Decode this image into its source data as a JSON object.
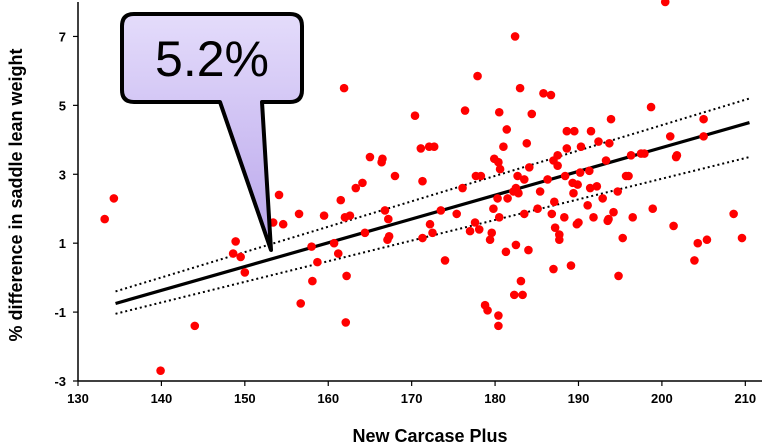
{
  "chart_data": {
    "type": "scatter",
    "title": "",
    "xlabel": "New Carcase Plus",
    "ylabel": "% difference in saddle lean weight",
    "xlim": [
      130,
      212
    ],
    "ylim": [
      -3,
      8
    ],
    "xticks": [
      130,
      140,
      150,
      160,
      170,
      180,
      190,
      200,
      210
    ],
    "yticks": [
      -3,
      -1,
      1,
      3,
      5,
      7
    ],
    "xtick_labels": [
      "130",
      "140",
      "150",
      "160",
      "170",
      "180",
      "190",
      "200",
      "210"
    ],
    "ytick_labels": [
      "-3",
      "-1",
      "1",
      "3",
      "5",
      "7"
    ],
    "grid": false,
    "point_color": "#ff0000",
    "line_color": "#000000",
    "points": [
      [
        133.2,
        1.7
      ],
      [
        134.3,
        2.3
      ],
      [
        139.9,
        -2.7
      ],
      [
        144.0,
        -1.4
      ],
      [
        148.6,
        0.7
      ],
      [
        148.9,
        1.05
      ],
      [
        149.5,
        0.6
      ],
      [
        150.0,
        0.15
      ],
      [
        153.4,
        1.6
      ],
      [
        154.1,
        2.4
      ],
      [
        154.6,
        1.55
      ],
      [
        156.5,
        1.85
      ],
      [
        156.7,
        -0.75
      ],
      [
        158.0,
        0.9
      ],
      [
        158.1,
        -0.1
      ],
      [
        158.7,
        0.45
      ],
      [
        159.5,
        1.8
      ],
      [
        160.7,
        1.0
      ],
      [
        161.2,
        0.7
      ],
      [
        161.5,
        2.25
      ],
      [
        161.9,
        5.5
      ],
      [
        162.0,
        1.75
      ],
      [
        162.1,
        -1.3
      ],
      [
        162.2,
        0.05
      ],
      [
        162.6,
        1.8
      ],
      [
        163.3,
        2.6
      ],
      [
        164.1,
        2.75
      ],
      [
        164.4,
        1.3
      ],
      [
        165.0,
        3.5
      ],
      [
        166.4,
        3.35
      ],
      [
        166.5,
        3.45
      ],
      [
        166.8,
        1.95
      ],
      [
        167.1,
        1.1
      ],
      [
        167.2,
        1.7
      ],
      [
        167.3,
        1.2
      ],
      [
        168.0,
        2.95
      ],
      [
        170.4,
        4.7
      ],
      [
        171.1,
        3.75
      ],
      [
        171.3,
        2.8
      ],
      [
        171.3,
        1.15
      ],
      [
        172.1,
        3.8
      ],
      [
        172.2,
        1.55
      ],
      [
        172.5,
        1.3
      ],
      [
        172.7,
        3.8
      ],
      [
        173.5,
        1.95
      ],
      [
        174.0,
        0.5
      ],
      [
        175.4,
        1.85
      ],
      [
        176.1,
        2.6
      ],
      [
        176.4,
        4.85
      ],
      [
        177.0,
        1.35
      ],
      [
        177.6,
        1.6
      ],
      [
        177.7,
        2.95
      ],
      [
        177.9,
        5.85
      ],
      [
        178.1,
        1.4
      ],
      [
        178.3,
        2.95
      ],
      [
        178.8,
        -0.8
      ],
      [
        179.1,
        -0.95
      ],
      [
        179.4,
        1.1
      ],
      [
        179.6,
        1.3
      ],
      [
        179.8,
        2.0
      ],
      [
        179.9,
        3.45
      ],
      [
        180.3,
        2.3
      ],
      [
        180.4,
        3.35
      ],
      [
        180.4,
        -1.4
      ],
      [
        180.4,
        -1.1
      ],
      [
        180.5,
        4.8
      ],
      [
        180.5,
        1.75
      ],
      [
        180.6,
        3.15
      ],
      [
        181.0,
        3.8
      ],
      [
        181.3,
        0.75
      ],
      [
        181.4,
        4.3
      ],
      [
        181.5,
        2.3
      ],
      [
        182.2,
        2.5
      ],
      [
        182.3,
        -0.5
      ],
      [
        182.4,
        7.0
      ],
      [
        182.5,
        0.95
      ],
      [
        182.5,
        2.6
      ],
      [
        182.7,
        2.95
      ],
      [
        182.8,
        2.45
      ],
      [
        183.0,
        5.5
      ],
      [
        183.1,
        -0.1
      ],
      [
        183.3,
        -0.5
      ],
      [
        183.5,
        2.85
      ],
      [
        183.5,
        1.85
      ],
      [
        183.8,
        3.9
      ],
      [
        184.0,
        0.8
      ],
      [
        184.1,
        3.2
      ],
      [
        184.4,
        4.75
      ],
      [
        185.1,
        2.0
      ],
      [
        185.4,
        2.5
      ],
      [
        185.8,
        5.35
      ],
      [
        186.3,
        2.85
      ],
      [
        186.7,
        5.3
      ],
      [
        186.8,
        1.85
      ],
      [
        187.0,
        3.4
      ],
      [
        187.0,
        0.25
      ],
      [
        187.1,
        2.2
      ],
      [
        187.2,
        1.45
      ],
      [
        187.5,
        3.25
      ],
      [
        187.5,
        3.55
      ],
      [
        187.7,
        1.25
      ],
      [
        187.7,
        1.1
      ],
      [
        188.3,
        1.75
      ],
      [
        188.4,
        2.95
      ],
      [
        188.6,
        3.75
      ],
      [
        188.6,
        4.25
      ],
      [
        189.1,
        0.35
      ],
      [
        189.3,
        2.75
      ],
      [
        189.4,
        2.45
      ],
      [
        189.5,
        4.25
      ],
      [
        189.8,
        1.55
      ],
      [
        189.9,
        2.7
      ],
      [
        190.0,
        1.6
      ],
      [
        190.2,
        3.05
      ],
      [
        190.3,
        3.8
      ],
      [
        191.1,
        2.1
      ],
      [
        191.3,
        3.1
      ],
      [
        191.4,
        2.6
      ],
      [
        191.5,
        4.25
      ],
      [
        191.8,
        1.75
      ],
      [
        192.2,
        2.65
      ],
      [
        192.4,
        3.95
      ],
      [
        192.9,
        2.3
      ],
      [
        193.3,
        3.4
      ],
      [
        193.5,
        1.65
      ],
      [
        193.6,
        1.7
      ],
      [
        193.7,
        3.9
      ],
      [
        193.9,
        4.6
      ],
      [
        194.2,
        1.9
      ],
      [
        194.7,
        2.5
      ],
      [
        194.8,
        0.05
      ],
      [
        195.3,
        1.15
      ],
      [
        195.7,
        2.95
      ],
      [
        196.0,
        2.95
      ],
      [
        196.3,
        3.55
      ],
      [
        196.5,
        1.75
      ],
      [
        197.5,
        3.6
      ],
      [
        197.9,
        3.6
      ],
      [
        198.7,
        4.95
      ],
      [
        198.9,
        2.0
      ],
      [
        200.4,
        8.0
      ],
      [
        201.0,
        4.1
      ],
      [
        201.4,
        1.5
      ],
      [
        201.7,
        3.5
      ],
      [
        201.8,
        3.55
      ],
      [
        203.9,
        0.5
      ],
      [
        204.3,
        1.0
      ],
      [
        205.0,
        4.1
      ],
      [
        205.0,
        4.6
      ],
      [
        205.4,
        1.1
      ],
      [
        208.6,
        1.85
      ],
      [
        209.6,
        1.15
      ]
    ],
    "regression_line": {
      "x": [
        134.5,
        210.5
      ],
      "y": [
        -0.75,
        4.5
      ]
    },
    "confidence_bounds": [
      {
        "x": [
          134.5,
          210.5
        ],
        "y": [
          -0.4,
          5.2
        ]
      },
      {
        "x": [
          134.5,
          210.5
        ],
        "y": [
          -1.05,
          3.5
        ]
      }
    ],
    "callout": {
      "text": "5.2%",
      "fill": "#c6b5ee",
      "stroke": "#000000"
    }
  }
}
